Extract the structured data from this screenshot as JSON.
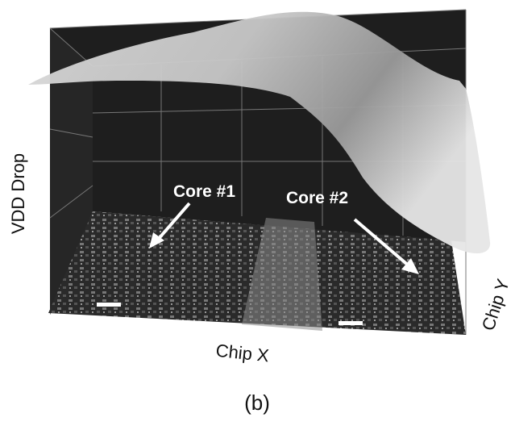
{
  "labels": {
    "y_axis": "VDD Drop",
    "x_axis": "Chip X",
    "z_axis": "Chip Y",
    "core1": "Core #1",
    "core2": "Core #2",
    "caption": "(b)"
  }
}
